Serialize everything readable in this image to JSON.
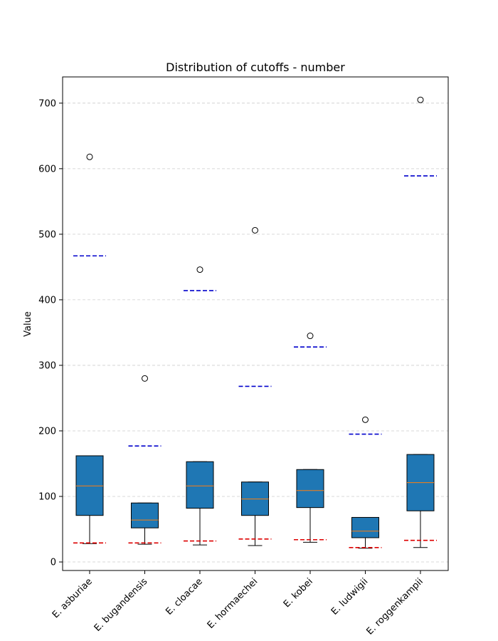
{
  "chart_data": {
    "type": "box",
    "title": "Distribution of cutoffs - number",
    "xlabel": "",
    "ylabel": "Value",
    "ylim": [
      -13,
      740
    ],
    "yticks": [
      0,
      100,
      200,
      300,
      400,
      500,
      600,
      700
    ],
    "grid": "horizontal-dashed",
    "categories": [
      "E. asburiae",
      "E. bugandensis",
      "E. cloacae",
      "E. hormaechei",
      "E. kobei",
      "E. ludwigii",
      "E. roggenkampii"
    ],
    "boxes": [
      {
        "whislo": 28,
        "q1": 71,
        "med": 116,
        "q3": 162,
        "whishi": 162,
        "fliers": [
          618
        ],
        "upper_line": 467,
        "lower_line": 29
      },
      {
        "whislo": 27,
        "q1": 52,
        "med": 64,
        "q3": 90,
        "whishi": 90,
        "fliers": [
          280
        ],
        "upper_line": 177,
        "lower_line": 29
      },
      {
        "whislo": 26,
        "q1": 82,
        "med": 116,
        "q3": 153,
        "whishi": 153,
        "fliers": [
          446
        ],
        "upper_line": 414,
        "lower_line": 32
      },
      {
        "whislo": 25,
        "q1": 71,
        "med": 96,
        "q3": 122,
        "whishi": 122,
        "fliers": [
          506
        ],
        "upper_line": 268,
        "lower_line": 35
      },
      {
        "whislo": 30,
        "q1": 83,
        "med": 109,
        "q3": 141,
        "whishi": 141,
        "fliers": [
          345
        ],
        "upper_line": 328,
        "lower_line": 34
      },
      {
        "whislo": 21,
        "q1": 37,
        "med": 47,
        "q3": 68,
        "whishi": 68,
        "fliers": [
          217
        ],
        "upper_line": 195,
        "lower_line": 22
      },
      {
        "whislo": 22,
        "q1": 78,
        "med": 121,
        "q3": 164,
        "whishi": 164,
        "fliers": [
          705
        ],
        "upper_line": 589,
        "lower_line": 33
      }
    ],
    "colors": {
      "box_fill": "#1f77b4",
      "median": "#ff7f0e",
      "upper_line": "#0000cc",
      "lower_line": "#dd0000",
      "grid": "#cccccc"
    }
  }
}
